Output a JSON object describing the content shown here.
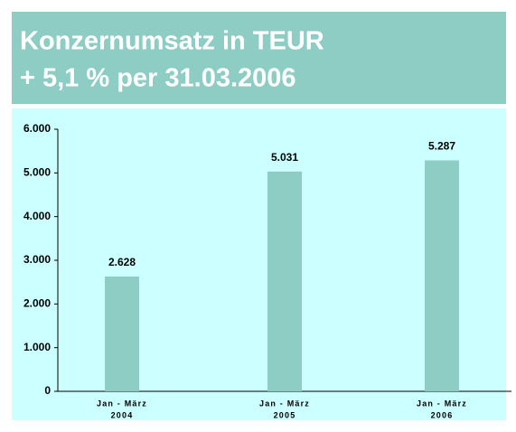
{
  "chart_data": {
    "type": "bar",
    "title": "Konzernumsatz in TEUR",
    "subtitle": "+ 5,1 % per 31.03.2006",
    "categories": [
      [
        "Jan - März",
        "2004"
      ],
      [
        "Jan - März",
        "2005"
      ],
      [
        "Jan - März",
        "2006"
      ]
    ],
    "values": [
      2628,
      5031,
      5287
    ],
    "value_labels": [
      "2.628",
      "5.031",
      "5.287"
    ],
    "color": "#8ecdc4",
    "ylim": [
      0,
      6000
    ],
    "yticks": [
      0,
      {
        "value": 1000,
        "label": "1.000"
      },
      {
        "value": 2000,
        "label": "2.000"
      },
      {
        "value": 3000,
        "label": "3.000"
      },
      {
        "value": 4000,
        "label": "4.000"
      },
      {
        "value": 5000,
        "label": "5.000"
      },
      {
        "value": 6000,
        "label": "6.000"
      }
    ],
    "grid": false
  }
}
